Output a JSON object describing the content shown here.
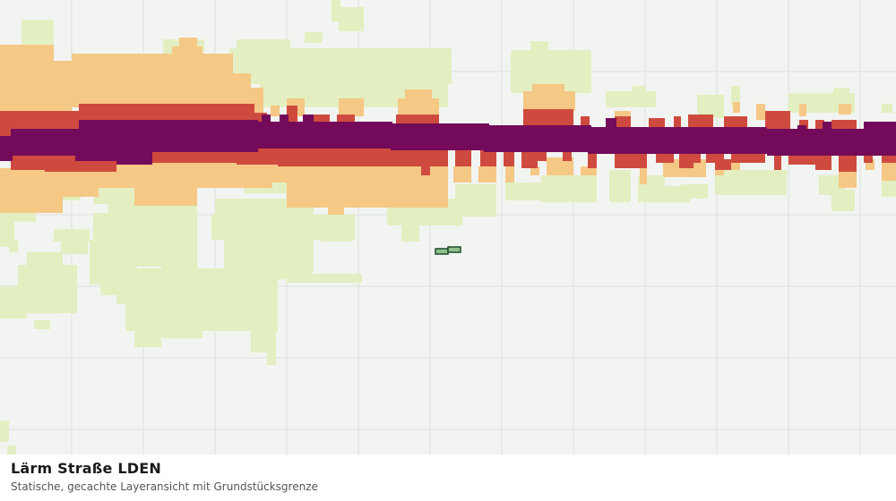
{
  "legend_title": "Lärm Straße LDEN",
  "subtitle": "Statische, gecachte Layeransicht mit Grundstücksgrenze",
  "colors": {
    "background": "#f2f4f1",
    "grid": "#dcdfdb",
    "noise_low": "#e3efc1",
    "noise_medium": "#f5c886",
    "noise_high": "#cf4a3e",
    "noise_very_high": "#730a5a",
    "parcel_fill": "#8fbf8a",
    "parcel_stroke": "#1e4a2c"
  }
}
